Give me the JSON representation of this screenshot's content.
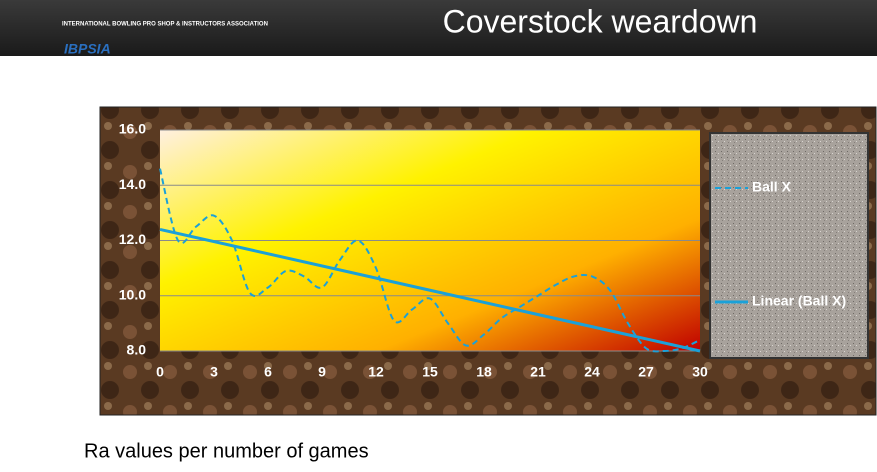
{
  "header": {
    "title": "Coverstock weardown",
    "logo_text": "INTERNATIONAL BOWLING PRO SHOP & INSTRUCTORS ASSOCIATION",
    "logo_name": "IBPSIA"
  },
  "caption": "Ra values per number of games",
  "chart_data": {
    "type": "line",
    "xlim": [
      0,
      30
    ],
    "xticks": [
      0,
      3,
      6,
      9,
      12,
      15,
      18,
      21,
      24,
      27,
      30
    ],
    "ylim": [
      8,
      16
    ],
    "yticks": [
      {
        "value": 8,
        "label": "8.0"
      },
      {
        "value": 10,
        "label": "10.0"
      },
      {
        "value": 12,
        "label": "12.0"
      },
      {
        "value": 14,
        "label": "14.0"
      },
      {
        "value": 16,
        "label": "16.0"
      }
    ],
    "grid": true,
    "legend": "right",
    "series": [
      {
        "name": "Ball X",
        "color": "#1ba1d8",
        "dashed": true,
        "x": [
          0,
          1,
          2,
          3,
          4,
          5,
          6,
          7,
          8,
          9,
          10,
          11,
          12,
          13,
          14,
          15,
          16,
          17,
          18,
          19,
          20,
          21,
          22,
          23,
          24,
          25,
          26,
          27,
          28,
          29,
          30
        ],
        "values": [
          14.6,
          12.0,
          12.5,
          12.9,
          12.0,
          10.1,
          10.3,
          10.9,
          10.7,
          10.3,
          11.3,
          12.0,
          11.0,
          9.1,
          9.5,
          9.9,
          9.0,
          8.2,
          8.6,
          9.2,
          9.6,
          10.0,
          10.4,
          10.7,
          10.7,
          10.2,
          9.0,
          8.1,
          8.0,
          8.1,
          8.4
        ]
      },
      {
        "name": "Linear (Ball X)",
        "color": "#1ba1d8",
        "dashed": false,
        "x": [
          0,
          30
        ],
        "values": [
          12.4,
          8.0
        ]
      }
    ]
  }
}
